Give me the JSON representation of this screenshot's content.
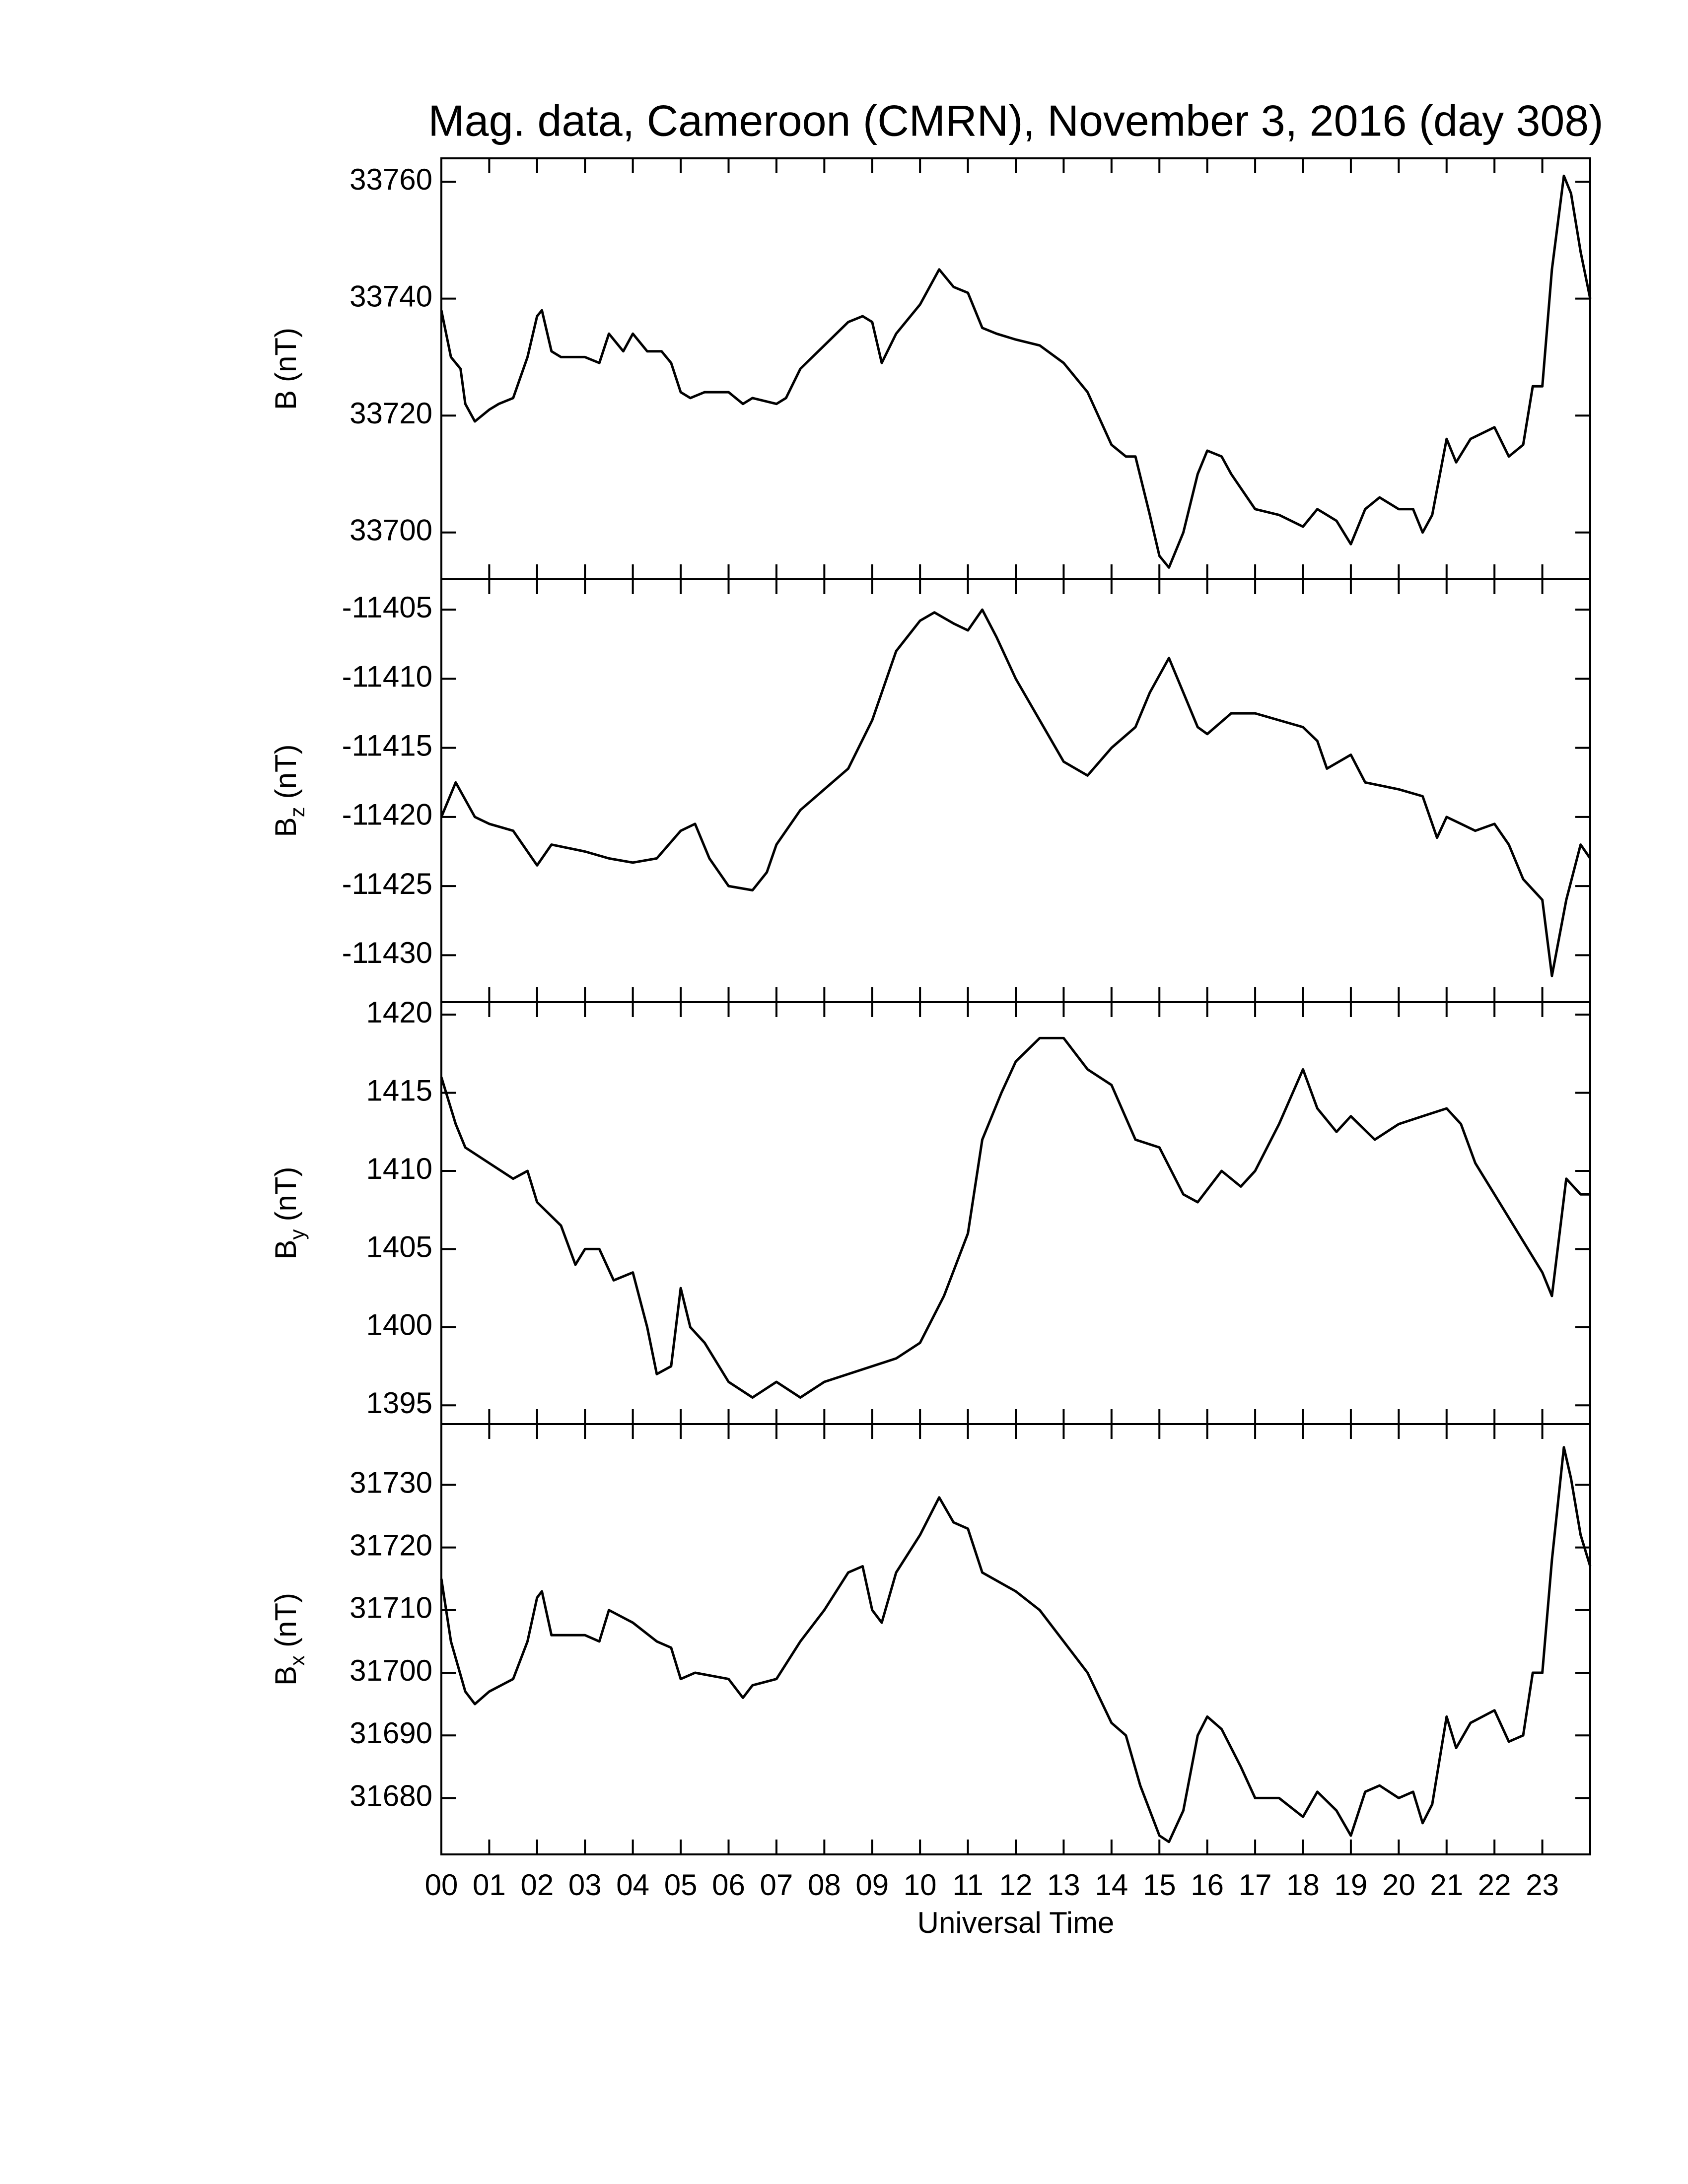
{
  "chart_data": [
    {
      "type": "line",
      "title": "Mag. data, Cameroon (CMRN), November 3, 2016 (day 308)",
      "ylabel": "B",
      "ylabel_unit": "(nT)",
      "color": "#000000",
      "ylim": [
        33692,
        33764
      ],
      "yticks": [
        33700,
        33720,
        33740,
        33760
      ],
      "x": [
        0,
        0.2,
        0.4,
        0.5,
        0.7,
        1.0,
        1.2,
        1.5,
        1.8,
        2.0,
        2.1,
        2.3,
        2.5,
        3.0,
        3.3,
        3.5,
        3.8,
        4.0,
        4.3,
        4.6,
        4.8,
        5.0,
        5.2,
        5.5,
        6.0,
        6.3,
        6.5,
        7.0,
        7.2,
        7.5,
        8.0,
        8.5,
        8.8,
        9.0,
        9.2,
        9.5,
        10.0,
        10.4,
        10.7,
        11.0,
        11.3,
        11.6,
        12.0,
        12.5,
        13.0,
        13.5,
        14.0,
        14.3,
        14.5,
        14.8,
        15.0,
        15.2,
        15.5,
        15.8,
        16.0,
        16.3,
        16.5,
        17.0,
        17.5,
        18.0,
        18.3,
        18.7,
        19.0,
        19.3,
        19.6,
        20.0,
        20.3,
        20.5,
        20.7,
        21.0,
        21.2,
        21.5,
        22.0,
        22.3,
        22.6,
        22.8,
        23.0,
        23.2,
        23.45,
        23.6,
        23.8,
        24.0
      ],
      "values": [
        33738,
        33730,
        33728,
        33722,
        33719,
        33721,
        33722,
        33723,
        33730,
        33737,
        33738,
        33731,
        33730,
        33730,
        33729,
        33734,
        33731,
        33734,
        33731,
        33731,
        33729,
        33724,
        33723,
        33724,
        33724,
        33722,
        33723,
        33722,
        33723,
        33728,
        33732,
        33736,
        33737,
        33736,
        33729,
        33734,
        33739,
        33745,
        33742,
        33741,
        33735,
        33734,
        33733,
        33732,
        33729,
        33724,
        33715,
        33713,
        33713,
        33703,
        33696,
        33694,
        33700,
        33710,
        33714,
        33713,
        33710,
        33704,
        33703,
        33701,
        33704,
        33702,
        33698,
        33704,
        33706,
        33704,
        33704,
        33700,
        33703,
        33716,
        33712,
        33716,
        33718,
        33713,
        33715,
        33725,
        33725,
        33745,
        33761,
        33758,
        33748,
        33740
      ]
    },
    {
      "type": "line",
      "ylabel": "B",
      "ylabel_sub": "z",
      "ylabel_unit": "(nT)",
      "color": "#000000",
      "ylim": [
        -11433.4,
        -11402.8
      ],
      "yticks": [
        -11430,
        -11425,
        -11420,
        -11415,
        -11410,
        -11405
      ],
      "x": [
        0,
        0.3,
        0.7,
        1.0,
        1.5,
        2.0,
        2.3,
        3.0,
        3.5,
        4.0,
        4.5,
        5.0,
        5.3,
        5.6,
        6.0,
        6.5,
        6.8,
        7.0,
        7.5,
        8.0,
        8.5,
        9.0,
        9.5,
        10.0,
        10.3,
        10.7,
        11.0,
        11.3,
        11.6,
        12.0,
        12.5,
        13.0,
        13.5,
        14.0,
        14.5,
        14.8,
        15.2,
        15.5,
        15.8,
        16.0,
        16.5,
        17.0,
        17.5,
        18.0,
        18.3,
        18.5,
        19.0,
        19.3,
        20.0,
        20.5,
        20.8,
        21.0,
        21.3,
        21.6,
        22.0,
        22.3,
        22.6,
        23.0,
        23.2,
        23.5,
        23.8,
        24.0
      ],
      "values": [
        -11420,
        -11417.5,
        -11420,
        -11420.5,
        -11421,
        -11423.5,
        -11422,
        -11422.5,
        -11423,
        -11423.3,
        -11423,
        -11421,
        -11420.5,
        -11423,
        -11425,
        -11425.3,
        -11424,
        -11422,
        -11419.5,
        -11418,
        -11416.5,
        -11413,
        -11408,
        -11405.8,
        -11405.2,
        -11406,
        -11406.5,
        -11405,
        -11407,
        -11410,
        -11413,
        -11416,
        -11417,
        -11415,
        -11413.5,
        -11411,
        -11408.5,
        -11411,
        -11413.5,
        -11414,
        -11412.5,
        -11412.5,
        -11413,
        -11413.5,
        -11414.5,
        -11416.5,
        -11415.5,
        -11417.5,
        -11418,
        -11418.5,
        -11421.5,
        -11420,
        -11420.5,
        -11421,
        -11420.5,
        -11422,
        -11424.5,
        -11426,
        -11431.5,
        -11426,
        -11422,
        -11423
      ]
    },
    {
      "type": "line",
      "ylabel": "B",
      "ylabel_sub": "y",
      "ylabel_unit": "(nT)",
      "color": "#000000",
      "ylim": [
        1393.8,
        1420.8
      ],
      "yticks": [
        1395,
        1400,
        1405,
        1410,
        1415,
        1420
      ],
      "x": [
        0,
        0.3,
        0.5,
        1.0,
        1.5,
        1.8,
        2.0,
        2.5,
        2.8,
        3.0,
        3.3,
        3.6,
        4.0,
        4.3,
        4.5,
        4.8,
        5.0,
        5.2,
        5.5,
        6.0,
        6.5,
        7.0,
        7.5,
        8.0,
        8.5,
        9.0,
        9.5,
        10.0,
        10.5,
        11.0,
        11.3,
        11.7,
        12.0,
        12.5,
        13.0,
        13.5,
        14.0,
        14.5,
        15.0,
        15.5,
        15.8,
        16.3,
        16.7,
        17.0,
        17.5,
        18.0,
        18.3,
        18.7,
        19.0,
        19.5,
        20.0,
        20.5,
        21.0,
        21.3,
        21.6,
        22.0,
        22.5,
        23.0,
        23.2,
        23.5,
        23.8,
        24.0
      ],
      "values": [
        1416,
        1413,
        1411.5,
        1410.5,
        1409.5,
        1410,
        1408,
        1406.5,
        1404,
        1405,
        1405,
        1403,
        1403.5,
        1400,
        1397,
        1397.5,
        1402.5,
        1400,
        1399,
        1396.5,
        1395.5,
        1396.5,
        1395.5,
        1396.5,
        1397,
        1397.5,
        1398,
        1399,
        1402,
        1406,
        1412,
        1415,
        1417,
        1418.5,
        1418.5,
        1416.5,
        1415.5,
        1412,
        1411.5,
        1408.5,
        1408,
        1410,
        1409,
        1410,
        1413,
        1416.5,
        1414,
        1412.5,
        1413.5,
        1412,
        1413,
        1413.5,
        1414,
        1413,
        1410.5,
        1408.5,
        1406,
        1403.5,
        1402,
        1409.5,
        1408.5,
        1408.5
      ]
    },
    {
      "type": "line",
      "ylabel": "B",
      "ylabel_sub": "x",
      "ylabel_unit": "(nT)",
      "xlabel": "Universal Time",
      "color": "#000000",
      "xlim": [
        0,
        24
      ],
      "xticks": [
        {
          "value": 0,
          "label": "00"
        },
        {
          "value": 1,
          "label": "01"
        },
        {
          "value": 2,
          "label": "02"
        },
        {
          "value": 3,
          "label": "03"
        },
        {
          "value": 4,
          "label": "04"
        },
        {
          "value": 5,
          "label": "05"
        },
        {
          "value": 6,
          "label": "06"
        },
        {
          "value": 7,
          "label": "07"
        },
        {
          "value": 8,
          "label": "08"
        },
        {
          "value": 9,
          "label": "09"
        },
        10,
        11,
        12,
        13,
        14,
        15,
        16,
        17,
        18,
        19,
        20,
        21,
        22,
        23
      ],
      "ylim": [
        31671,
        31739.7
      ],
      "yticks": [
        31680,
        31690,
        31700,
        31710,
        31720,
        31730
      ],
      "x": [
        0,
        0.2,
        0.5,
        0.7,
        1.0,
        1.5,
        1.8,
        2.0,
        2.1,
        2.3,
        3.0,
        3.3,
        3.5,
        4.0,
        4.5,
        4.8,
        5.0,
        5.3,
        6.0,
        6.3,
        6.5,
        7.0,
        7.5,
        8.0,
        8.5,
        8.8,
        9.0,
        9.2,
        9.5,
        10.0,
        10.4,
        10.7,
        11.0,
        11.3,
        12.0,
        12.5,
        13.0,
        13.5,
        14.0,
        14.3,
        14.6,
        15.0,
        15.2,
        15.5,
        15.8,
        16.0,
        16.3,
        16.7,
        17.0,
        17.5,
        18.0,
        18.3,
        18.7,
        19.0,
        19.3,
        19.6,
        20.0,
        20.3,
        20.5,
        20.7,
        21.0,
        21.2,
        21.5,
        22.0,
        22.3,
        22.6,
        22.8,
        23.0,
        23.2,
        23.45,
        23.6,
        23.8,
        24.0
      ],
      "values": [
        31715,
        31705,
        31697,
        31695,
        31697,
        31699,
        31705,
        31712,
        31713,
        31706,
        31706,
        31705,
        31710,
        31708,
        31705,
        31704,
        31699,
        31700,
        31699,
        31696,
        31698,
        31699,
        31705,
        31710,
        31716,
        31717,
        31710,
        31708,
        31716,
        31722,
        31728,
        31724,
        31723,
        31716,
        31713,
        31710,
        31705,
        31700,
        31692,
        31690,
        31682,
        31674,
        31673,
        31678,
        31690,
        31693,
        31691,
        31685,
        31680,
        31680,
        31677,
        31681,
        31678,
        31674,
        31681,
        31682,
        31680,
        31681,
        31676,
        31679,
        31693,
        31688,
        31692,
        31694,
        31689,
        31690,
        31700,
        31700,
        31718,
        31736,
        31731,
        31722,
        31717
      ]
    }
  ]
}
